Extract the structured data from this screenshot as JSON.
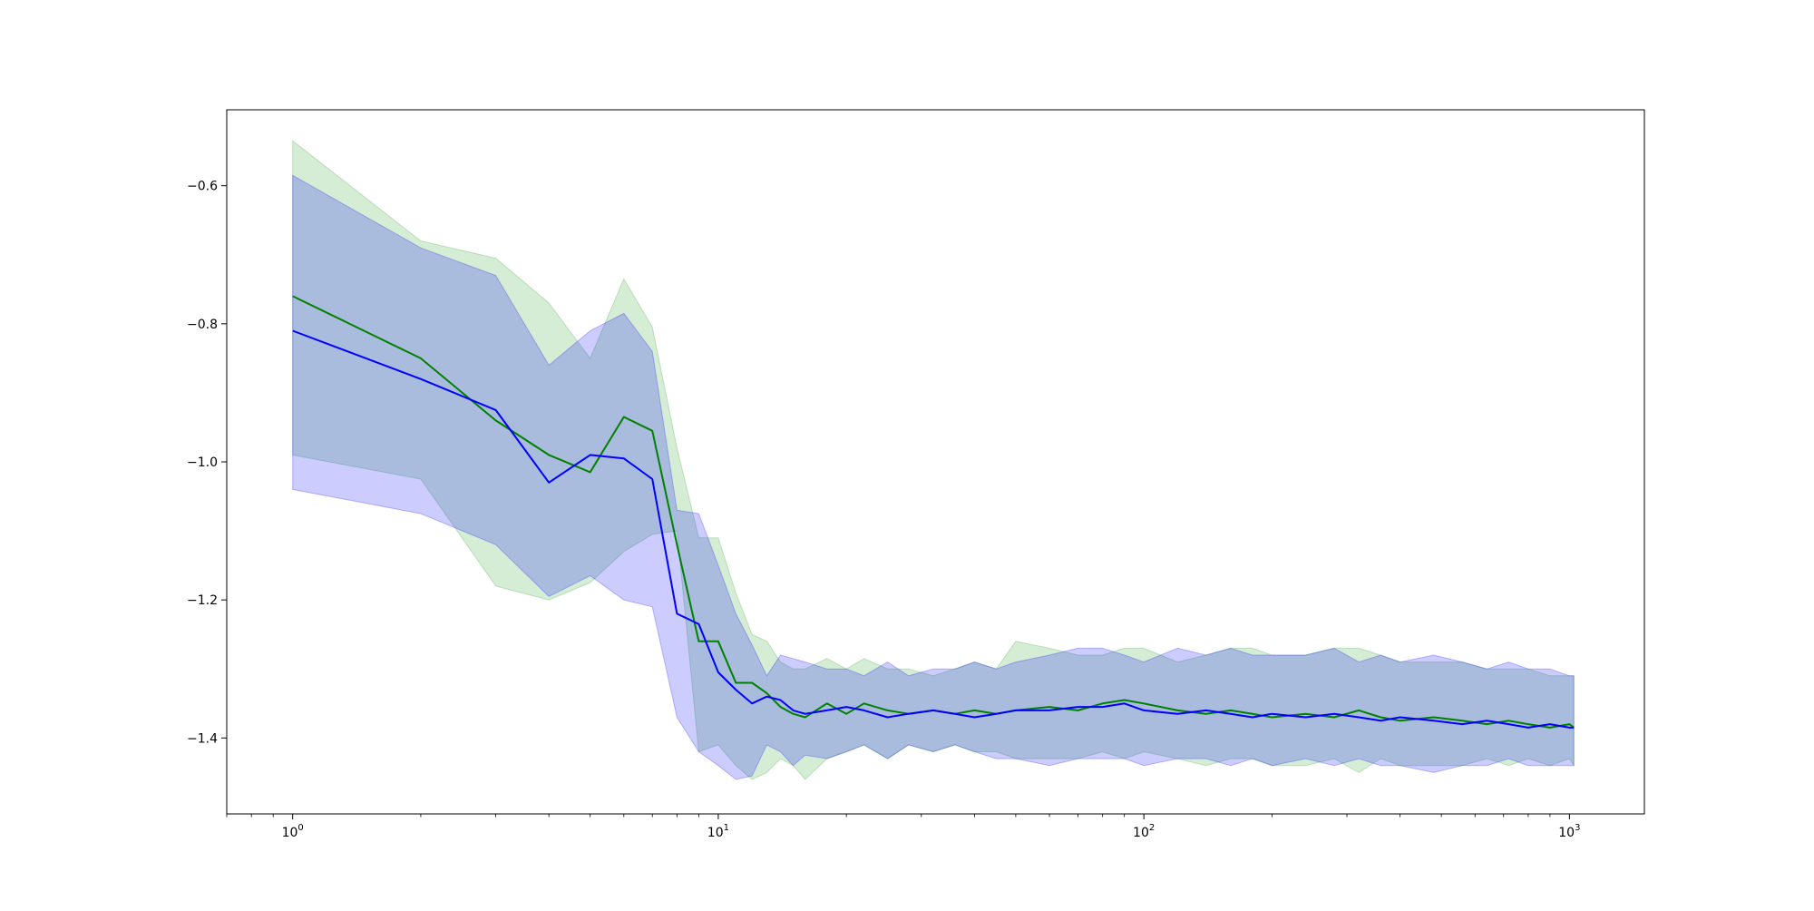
{
  "chart_data": {
    "type": "line",
    "title": "",
    "xlabel": "",
    "ylabel": "",
    "xscale": "log",
    "xlim": [
      0.7,
      1500
    ],
    "ylim": [
      -1.51,
      -0.49
    ],
    "grid": false,
    "x_ticks": [
      {
        "value": 1,
        "base": "10",
        "exp": "0"
      },
      {
        "value": 10,
        "base": "10",
        "exp": "1"
      },
      {
        "value": 100,
        "base": "10",
        "exp": "2"
      },
      {
        "value": 1000,
        "base": "10",
        "exp": "3"
      }
    ],
    "y_ticks": [
      {
        "value": -0.6,
        "label": "−0.6"
      },
      {
        "value": -0.8,
        "label": "−0.8"
      },
      {
        "value": -1.0,
        "label": "−1.0"
      },
      {
        "value": -1.2,
        "label": "−1.2"
      },
      {
        "value": -1.4,
        "label": "−1.4"
      }
    ],
    "series": [
      {
        "color": "#008000",
        "band_color": "#2ca02c",
        "x": [
          1,
          2,
          3,
          4,
          5,
          6,
          7,
          8,
          9,
          10,
          11,
          12,
          13,
          14,
          15,
          16,
          18,
          20,
          22,
          25,
          28,
          32,
          36,
          40,
          45,
          50,
          60,
          70,
          80,
          90,
          100,
          120,
          140,
          160,
          180,
          200,
          240,
          280,
          320,
          360,
          400,
          480,
          560,
          640,
          720,
          800,
          900,
          1000,
          1024
        ],
        "mean": [
          -0.76,
          -0.85,
          -0.94,
          -0.99,
          -1.015,
          -0.935,
          -0.955,
          -1.12,
          -1.26,
          -1.26,
          -1.32,
          -1.32,
          -1.335,
          -1.355,
          -1.365,
          -1.37,
          -1.35,
          -1.365,
          -1.35,
          -1.36,
          -1.365,
          -1.36,
          -1.365,
          -1.36,
          -1.365,
          -1.36,
          -1.355,
          -1.36,
          -1.35,
          -1.345,
          -1.35,
          -1.36,
          -1.365,
          -1.36,
          -1.365,
          -1.37,
          -1.365,
          -1.37,
          -1.36,
          -1.37,
          -1.375,
          -1.37,
          -1.375,
          -1.38,
          -1.375,
          -1.38,
          -1.385,
          -1.38,
          -1.385
        ],
        "lower": [
          -0.99,
          -1.025,
          -1.18,
          -1.2,
          -1.175,
          -1.13,
          -1.105,
          -1.1,
          -1.42,
          -1.41,
          -1.44,
          -1.46,
          -1.45,
          -1.43,
          -1.44,
          -1.46,
          -1.43,
          -1.42,
          -1.41,
          -1.43,
          -1.41,
          -1.42,
          -1.41,
          -1.42,
          -1.42,
          -1.43,
          -1.43,
          -1.43,
          -1.42,
          -1.43,
          -1.42,
          -1.43,
          -1.44,
          -1.43,
          -1.43,
          -1.44,
          -1.44,
          -1.43,
          -1.45,
          -1.43,
          -1.44,
          -1.44,
          -1.44,
          -1.43,
          -1.44,
          -1.43,
          -1.44,
          -1.43,
          -1.44
        ],
        "upper": [
          -0.535,
          -0.68,
          -0.705,
          -0.77,
          -0.85,
          -0.735,
          -0.805,
          -0.98,
          -1.11,
          -1.11,
          -1.19,
          -1.25,
          -1.26,
          -1.29,
          -1.3,
          -1.3,
          -1.285,
          -1.3,
          -1.285,
          -1.3,
          -1.3,
          -1.31,
          -1.3,
          -1.29,
          -1.3,
          -1.26,
          -1.27,
          -1.28,
          -1.28,
          -1.27,
          -1.27,
          -1.29,
          -1.28,
          -1.27,
          -1.27,
          -1.28,
          -1.28,
          -1.27,
          -1.27,
          -1.28,
          -1.29,
          -1.29,
          -1.29,
          -1.3,
          -1.3,
          -1.3,
          -1.31,
          -1.31,
          -1.31
        ]
      },
      {
        "color": "#0000ff",
        "band_color": "#0000ff",
        "x": [
          1,
          2,
          3,
          4,
          5,
          6,
          7,
          8,
          9,
          10,
          11,
          12,
          13,
          14,
          15,
          16,
          18,
          20,
          22,
          25,
          28,
          32,
          36,
          40,
          45,
          50,
          60,
          70,
          80,
          90,
          100,
          120,
          140,
          160,
          180,
          200,
          240,
          280,
          320,
          360,
          400,
          480,
          560,
          640,
          720,
          800,
          900,
          1000,
          1024
        ],
        "mean": [
          -0.81,
          -0.88,
          -0.925,
          -1.03,
          -0.99,
          -0.995,
          -1.025,
          -1.22,
          -1.235,
          -1.305,
          -1.33,
          -1.35,
          -1.34,
          -1.345,
          -1.36,
          -1.365,
          -1.36,
          -1.355,
          -1.36,
          -1.37,
          -1.365,
          -1.36,
          -1.365,
          -1.37,
          -1.365,
          -1.36,
          -1.36,
          -1.355,
          -1.355,
          -1.35,
          -1.36,
          -1.365,
          -1.36,
          -1.365,
          -1.37,
          -1.365,
          -1.37,
          -1.365,
          -1.37,
          -1.375,
          -1.37,
          -1.375,
          -1.38,
          -1.375,
          -1.38,
          -1.385,
          -1.38,
          -1.385,
          -1.385
        ],
        "lower": [
          -1.04,
          -1.075,
          -1.12,
          -1.195,
          -1.165,
          -1.2,
          -1.21,
          -1.37,
          -1.42,
          -1.44,
          -1.46,
          -1.455,
          -1.41,
          -1.42,
          -1.44,
          -1.425,
          -1.43,
          -1.42,
          -1.41,
          -1.43,
          -1.41,
          -1.42,
          -1.41,
          -1.42,
          -1.43,
          -1.43,
          -1.44,
          -1.43,
          -1.43,
          -1.43,
          -1.44,
          -1.43,
          -1.43,
          -1.44,
          -1.43,
          -1.44,
          -1.43,
          -1.44,
          -1.43,
          -1.44,
          -1.44,
          -1.45,
          -1.44,
          -1.44,
          -1.43,
          -1.44,
          -1.44,
          -1.44,
          -1.44
        ],
        "upper": [
          -0.585,
          -0.69,
          -0.73,
          -0.86,
          -0.81,
          -0.785,
          -0.84,
          -1.07,
          -1.075,
          -1.15,
          -1.22,
          -1.265,
          -1.31,
          -1.28,
          -1.285,
          -1.29,
          -1.3,
          -1.3,
          -1.31,
          -1.29,
          -1.31,
          -1.3,
          -1.3,
          -1.29,
          -1.3,
          -1.29,
          -1.28,
          -1.27,
          -1.27,
          -1.28,
          -1.29,
          -1.27,
          -1.28,
          -1.27,
          -1.28,
          -1.28,
          -1.28,
          -1.27,
          -1.29,
          -1.28,
          -1.29,
          -1.28,
          -1.29,
          -1.3,
          -1.29,
          -1.3,
          -1.3,
          -1.31,
          -1.31
        ]
      }
    ]
  }
}
